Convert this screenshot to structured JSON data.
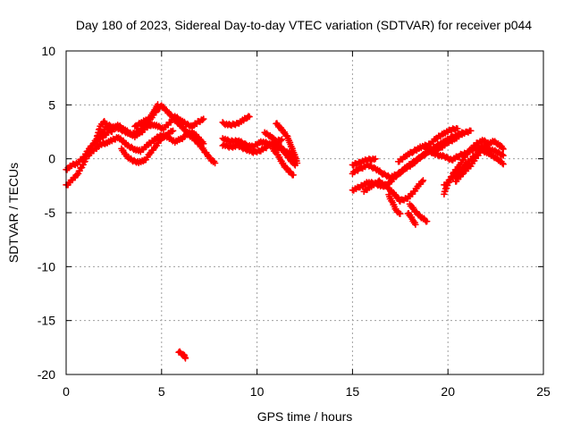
{
  "chart_data": {
    "type": "scatter",
    "title": "Day 180 of 2023, Sidereal Day-to-day VTEC variation (SDTVAR) for receiver p044",
    "xlabel": "GPS time / hours",
    "ylabel": "SDTVAR / TECUs",
    "xlim": [
      0,
      25
    ],
    "ylim": [
      -20,
      10
    ],
    "xticks": [
      "0",
      "5",
      "10",
      "15",
      "20",
      "25"
    ],
    "yticks": [
      "10",
      "5",
      "0",
      "-5",
      "-10",
      "-15",
      "-20"
    ],
    "grid": true,
    "series": [
      {
        "name": "SDTVAR",
        "color": "#ff0000",
        "marker": "plus",
        "tracks": [
          [
            [
              0.0,
              -2.5
            ],
            [
              0.3,
              -2.0
            ],
            [
              0.6,
              -1.4
            ],
            [
              0.9,
              -0.5
            ],
            [
              1.1,
              0.3
            ],
            [
              1.3,
              1.1
            ],
            [
              1.6,
              1.8
            ],
            [
              1.9,
              2.5
            ],
            [
              2.2,
              3.1
            ],
            [
              2.6,
              2.9
            ],
            [
              3.0,
              2.6
            ],
            [
              3.4,
              2.2
            ],
            [
              3.8,
              2.6
            ],
            [
              4.2,
              3.2
            ],
            [
              4.5,
              3.9
            ],
            [
              4.8,
              4.6
            ],
            [
              5.0,
              4.9
            ],
            [
              5.3,
              4.4
            ],
            [
              5.7,
              3.6
            ],
            [
              6.1,
              2.9
            ],
            [
              6.4,
              2.3
            ],
            [
              6.7,
              1.8
            ],
            [
              7.0,
              1.3
            ],
            [
              7.3,
              0.6
            ],
            [
              7.6,
              -0.1
            ],
            [
              7.8,
              -0.4
            ]
          ],
          [
            [
              0.0,
              -1.0
            ],
            [
              0.3,
              -0.6
            ],
            [
              0.6,
              -0.4
            ],
            [
              0.9,
              0.1
            ],
            [
              1.2,
              0.9
            ],
            [
              1.5,
              1.5
            ],
            [
              1.8,
              1.9
            ],
            [
              2.1,
              2.3
            ],
            [
              2.4,
              2.8
            ],
            [
              2.7,
              3.1
            ],
            [
              3.0,
              2.8
            ],
            [
              3.3,
              2.4
            ],
            [
              3.6,
              2.1
            ],
            [
              3.9,
              2.4
            ],
            [
              4.2,
              2.9
            ],
            [
              4.5,
              3.2
            ],
            [
              4.8,
              3.0
            ],
            [
              5.1,
              2.8
            ],
            [
              5.4,
              3.3
            ],
            [
              5.7,
              3.9
            ],
            [
              6.0,
              3.6
            ],
            [
              6.3,
              3.2
            ],
            [
              6.6,
              3.0
            ],
            [
              6.9,
              3.4
            ],
            [
              7.2,
              3.7
            ]
          ],
          [
            [
              1.2,
              0.4
            ],
            [
              1.5,
              0.9
            ],
            [
              1.8,
              1.3
            ],
            [
              2.1,
              1.5
            ],
            [
              2.4,
              1.7
            ],
            [
              2.7,
              2.0
            ],
            [
              3.0,
              1.6
            ],
            [
              3.3,
              1.1
            ],
            [
              3.6,
              0.9
            ],
            [
              3.9,
              0.7
            ],
            [
              4.2,
              1.2
            ],
            [
              4.5,
              1.6
            ],
            [
              4.8,
              2.0
            ],
            [
              5.1,
              2.2
            ],
            [
              5.4,
              1.9
            ],
            [
              5.7,
              1.6
            ],
            [
              6.0,
              1.8
            ],
            [
              6.3,
              2.2
            ],
            [
              6.6,
              2.5
            ],
            [
              6.9,
              2.0
            ],
            [
              7.2,
              1.4
            ]
          ],
          [
            [
              2.9,
              0.9
            ],
            [
              3.2,
              0.2
            ],
            [
              3.5,
              -0.2
            ],
            [
              3.8,
              -0.3
            ],
            [
              4.1,
              -0.2
            ],
            [
              4.4,
              0.5
            ],
            [
              4.7,
              1.2
            ],
            [
              5.0,
              1.9
            ],
            [
              5.3,
              2.3
            ],
            [
              5.6,
              2.6
            ]
          ],
          [
            [
              1.6,
              1.9
            ],
            [
              1.8,
              3.1
            ],
            [
              2.0,
              3.4
            ],
            [
              2.2,
              3.0
            ],
            [
              2.4,
              2.5
            ]
          ],
          [
            [
              8.2,
              3.3
            ],
            [
              8.6,
              3.1
            ],
            [
              9.0,
              3.3
            ],
            [
              9.3,
              3.6
            ],
            [
              9.5,
              3.9
            ],
            [
              9.6,
              3.9
            ]
          ],
          [
            [
              8.2,
              1.9
            ],
            [
              8.6,
              1.6
            ],
            [
              9.0,
              1.7
            ],
            [
              9.4,
              1.3
            ],
            [
              9.8,
              1.1
            ],
            [
              10.2,
              1.6
            ],
            [
              10.6,
              1.4
            ],
            [
              11.0,
              1.1
            ],
            [
              11.4,
              0.8
            ],
            [
              11.8,
              0.4
            ],
            [
              12.0,
              0.1
            ]
          ],
          [
            [
              8.2,
              1.3
            ],
            [
              8.6,
              1.1
            ],
            [
              9.0,
              1.2
            ],
            [
              9.4,
              0.9
            ],
            [
              9.8,
              0.6
            ],
            [
              10.2,
              0.8
            ],
            [
              10.6,
              1.2
            ],
            [
              11.0,
              1.6
            ],
            [
              11.3,
              1.8
            ]
          ],
          [
            [
              10.4,
              2.4
            ],
            [
              10.8,
              2.0
            ],
            [
              11.1,
              1.4
            ],
            [
              11.4,
              0.7
            ],
            [
              11.7,
              0.0
            ],
            [
              12.0,
              -0.6
            ]
          ],
          [
            [
              11.0,
              3.3
            ],
            [
              11.3,
              2.7
            ],
            [
              11.6,
              2.0
            ],
            [
              11.8,
              1.1
            ],
            [
              12.0,
              0.2
            ],
            [
              12.1,
              -0.4
            ]
          ],
          [
            [
              10.8,
              1.0
            ],
            [
              11.1,
              0.3
            ],
            [
              11.4,
              -0.6
            ],
            [
              11.7,
              -1.2
            ],
            [
              11.9,
              -1.5
            ]
          ],
          [
            [
              15.0,
              -2.9
            ],
            [
              15.4,
              -2.6
            ],
            [
              15.8,
              -2.2
            ],
            [
              16.2,
              -2.3
            ],
            [
              16.6,
              -2.6
            ],
            [
              17.0,
              -2.1
            ],
            [
              17.4,
              -1.4
            ],
            [
              17.8,
              -0.8
            ],
            [
              18.2,
              -0.3
            ],
            [
              18.6,
              0.2
            ],
            [
              19.0,
              0.7
            ],
            [
              19.4,
              1.2
            ],
            [
              19.8,
              1.6
            ],
            [
              20.2,
              2.0
            ],
            [
              20.6,
              2.3
            ],
            [
              21.0,
              2.5
            ],
            [
              21.2,
              2.6
            ]
          ],
          [
            [
              15.0,
              -1.3
            ],
            [
              15.4,
              -0.9
            ],
            [
              15.8,
              -0.6
            ],
            [
              16.2,
              -0.9
            ],
            [
              16.6,
              -1.4
            ],
            [
              17.0,
              -1.7
            ],
            [
              17.4,
              -1.4
            ],
            [
              17.8,
              -0.9
            ],
            [
              18.2,
              -0.4
            ],
            [
              18.6,
              0.2
            ],
            [
              19.0,
              0.7
            ],
            [
              19.4,
              0.4
            ],
            [
              19.8,
              0.2
            ],
            [
              20.2,
              -0.1
            ],
            [
              20.6,
              0.3
            ],
            [
              21.0,
              0.6
            ],
            [
              21.4,
              0.9
            ],
            [
              21.8,
              1.1
            ],
            [
              22.2,
              0.9
            ],
            [
              22.6,
              0.6
            ],
            [
              22.9,
              0.3
            ]
          ],
          [
            [
              15.0,
              -0.6
            ],
            [
              15.4,
              -0.3
            ],
            [
              15.8,
              -0.1
            ],
            [
              16.2,
              0.0
            ]
          ],
          [
            [
              15.6,
              -3.0
            ],
            [
              16.0,
              -2.5
            ],
            [
              16.4,
              -2.1
            ],
            [
              16.8,
              -2.6
            ],
            [
              17.2,
              -3.3
            ],
            [
              17.5,
              -3.9
            ],
            [
              17.9,
              -3.6
            ],
            [
              18.2,
              -3.1
            ],
            [
              18.4,
              -2.6
            ],
            [
              18.7,
              -2.0
            ]
          ],
          [
            [
              16.9,
              -3.4
            ],
            [
              17.1,
              -4.1
            ],
            [
              17.3,
              -4.8
            ],
            [
              17.5,
              -5.1
            ]
          ],
          [
            [
              18.0,
              -4.2
            ],
            [
              18.3,
              -4.9
            ],
            [
              18.6,
              -5.4
            ],
            [
              18.9,
              -5.8
            ]
          ],
          [
            [
              17.9,
              -5.0
            ],
            [
              18.1,
              -5.5
            ],
            [
              18.3,
              -6.1
            ]
          ],
          [
            [
              17.4,
              -0.3
            ],
            [
              17.8,
              0.3
            ],
            [
              18.2,
              0.7
            ],
            [
              18.6,
              1.1
            ],
            [
              19.0,
              1.3
            ],
            [
              19.4,
              1.9
            ],
            [
              19.8,
              2.4
            ],
            [
              20.2,
              2.7
            ],
            [
              20.5,
              2.8
            ]
          ],
          [
            [
              18.8,
              1.0
            ],
            [
              19.2,
              0.6
            ],
            [
              19.6,
              1.0
            ],
            [
              20.0,
              1.5
            ],
            [
              20.4,
              1.9
            ],
            [
              20.8,
              2.4
            ]
          ],
          [
            [
              19.8,
              -2.5
            ],
            [
              20.2,
              -1.8
            ],
            [
              20.6,
              -1.2
            ],
            [
              21.0,
              -0.4
            ],
            [
              21.4,
              0.3
            ],
            [
              21.8,
              0.8
            ],
            [
              22.2,
              0.4
            ],
            [
              22.6,
              0.0
            ],
            [
              22.9,
              -0.5
            ]
          ],
          [
            [
              20.4,
              -2.1
            ],
            [
              20.8,
              -1.3
            ],
            [
              21.2,
              -0.6
            ],
            [
              21.5,
              0.2
            ],
            [
              21.8,
              0.9
            ],
            [
              22.1,
              1.4
            ],
            [
              22.4,
              1.6
            ],
            [
              22.7,
              1.3
            ],
            [
              22.9,
              0.9
            ]
          ],
          [
            [
              19.8,
              -3.2
            ],
            [
              20.0,
              -2.3
            ],
            [
              20.3,
              -1.3
            ],
            [
              20.6,
              -0.6
            ],
            [
              20.9,
              0.2
            ],
            [
              21.2,
              0.9
            ],
            [
              21.5,
              1.4
            ],
            [
              21.8,
              1.7
            ],
            [
              22.1,
              1.5
            ]
          ],
          [
            [
              4.8,
              5.0
            ],
            [
              4.6,
              4.4
            ],
            [
              4.4,
              3.8
            ],
            [
              4.0,
              3.4
            ],
            [
              3.6,
              3.0
            ]
          ],
          [
            [
              5.9,
              -17.9
            ],
            [
              6.1,
              -18.1
            ],
            [
              6.2,
              -18.3
            ],
            [
              6.25,
              -18.5
            ]
          ]
        ]
      }
    ]
  }
}
